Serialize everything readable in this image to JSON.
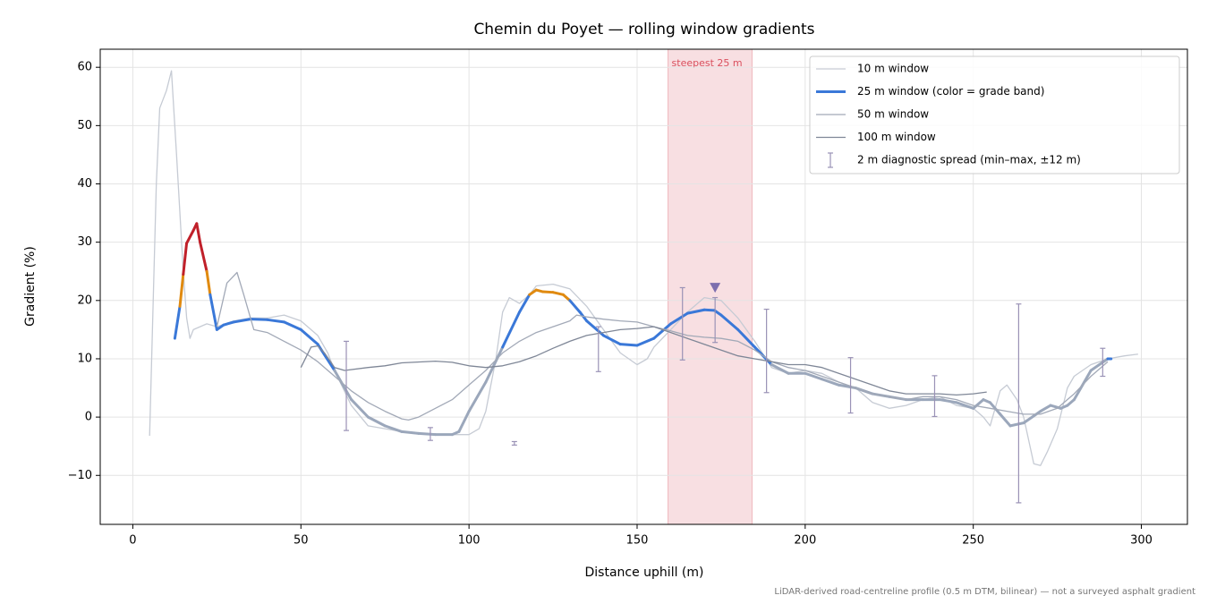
{
  "chart_data": {
    "type": "line",
    "title": "Chemin du Poyet — rolling window gradients",
    "xlabel": "Distance uphill (m)",
    "ylabel": "Gradient (%)",
    "xlim": [
      -9.7,
      313.7
    ],
    "ylim": [
      -18.4,
      63.1
    ],
    "xticks": [
      0,
      50,
      100,
      150,
      200,
      250,
      300
    ],
    "yticks": [
      {
        "value": -10,
        "label": "−10"
      },
      0,
      10,
      20,
      30,
      40,
      50,
      60
    ],
    "grid": true,
    "legend": "upper right",
    "series": [
      {
        "name": "10 m window",
        "color": "#c6cbd4",
        "linewidth": 1.3,
        "x": [
          5,
          7,
          8,
          10,
          11.5,
          13,
          15,
          16,
          17,
          18,
          20,
          22,
          25,
          30,
          35,
          40,
          45,
          50,
          55,
          58,
          60,
          65,
          70,
          75,
          80,
          85,
          90,
          95,
          100,
          103,
          105,
          108,
          110,
          112,
          115,
          118,
          120,
          125,
          130,
          135,
          140,
          145,
          150,
          153,
          155,
          160,
          165,
          170,
          175,
          180,
          185,
          190,
          195,
          200,
          205,
          210,
          215,
          220,
          225,
          230,
          235,
          240,
          245,
          250,
          253,
          255,
          258,
          260,
          263,
          265,
          268,
          270,
          272,
          275,
          278,
          280,
          285,
          290,
          295,
          299
        ],
        "values": [
          -3.2,
          40,
          53,
          56,
          59.4,
          45,
          25,
          17,
          13.5,
          15,
          15.5,
          16,
          15.5,
          16.5,
          17,
          17,
          17.5,
          16.5,
          14,
          11,
          8,
          2,
          -1.5,
          -2,
          -2.5,
          -2.8,
          -3,
          -3,
          -3,
          -2,
          1,
          10,
          18,
          20.5,
          19.5,
          21,
          22.5,
          22.8,
          22,
          19,
          15,
          11,
          9,
          10,
          12,
          15,
          18,
          20.5,
          20,
          17,
          13,
          8.5,
          7.5,
          8,
          7.5,
          6,
          5,
          2.5,
          1.5,
          2,
          3,
          3.5,
          2,
          1.5,
          0,
          -1.5,
          4.5,
          5.5,
          3,
          0,
          -8,
          -8.3,
          -6,
          -2,
          5,
          7,
          9,
          10,
          10.5,
          10.8
        ]
      },
      {
        "name": "25 m window (color = grade band)",
        "color": "#3a78d8",
        "linewidth": 3,
        "band_thresholds": [
          10,
          20,
          25
        ],
        "band_colors": [
          "#9ba7bb",
          "#3a78d8",
          "#e08a10",
          "#c0202a"
        ],
        "x": [
          12.5,
          14,
          15,
          16,
          18,
          19,
          20,
          22,
          23,
          25,
          27,
          30,
          35,
          40,
          45,
          50,
          55,
          60,
          65,
          70,
          75,
          80,
          85,
          90,
          95,
          97,
          100,
          105,
          110,
          115,
          118,
          120,
          122,
          125,
          128,
          130,
          133,
          135,
          140,
          145,
          150,
          155,
          160,
          165,
          170,
          173,
          175,
          180,
          185,
          190,
          195,
          200,
          205,
          210,
          215,
          220,
          225,
          230,
          235,
          240,
          245,
          250,
          253,
          255,
          258,
          261,
          265,
          270,
          273,
          276,
          278,
          280,
          285,
          290,
          291
        ],
        "values": [
          13.5,
          19,
          24.5,
          29.8,
          32,
          33.2,
          30,
          25,
          21,
          15,
          15.8,
          16.3,
          16.8,
          16.7,
          16.3,
          15,
          12.5,
          8,
          3,
          0,
          -1.5,
          -2.5,
          -2.8,
          -3,
          -3,
          -2.5,
          1,
          6,
          12,
          18,
          21,
          21.8,
          21.5,
          21.4,
          21,
          20,
          18,
          16.5,
          14,
          12.5,
          12.3,
          13.5,
          16,
          17.8,
          18.4,
          18.3,
          17.5,
          15,
          12,
          9,
          7.5,
          7.5,
          6.5,
          5.5,
          5,
          4,
          3.5,
          3,
          3,
          3,
          2.5,
          1.5,
          3,
          2.5,
          0.5,
          -1.5,
          -1,
          1,
          2,
          1.5,
          2,
          3,
          8,
          10,
          10
        ]
      },
      {
        "name": "50 m window",
        "color": "#a2a9b7",
        "linewidth": 1.3,
        "x": [
          25,
          28,
          31,
          33,
          36,
          40,
          45,
          50,
          55,
          60,
          65,
          70,
          75,
          80,
          82,
          85,
          90,
          95,
          100,
          105,
          110,
          115,
          120,
          125,
          130,
          132,
          135,
          140,
          145,
          150,
          155,
          160,
          165,
          170,
          175,
          180,
          185,
          190,
          195,
          200,
          205,
          210,
          215,
          220,
          225,
          230,
          235,
          240,
          245,
          250,
          255,
          260,
          265,
          270,
          275,
          280,
          285,
          290
        ],
        "values": [
          15.5,
          23,
          24.8,
          21,
          15,
          14.5,
          13,
          11.5,
          9.5,
          7,
          4.5,
          2.5,
          1,
          -0.3,
          -0.5,
          0,
          1.5,
          3,
          5.5,
          8,
          11,
          13,
          14.5,
          15.5,
          16.5,
          17.5,
          17.2,
          16.8,
          16.5,
          16.3,
          15.5,
          14.8,
          14,
          13.7,
          13.5,
          13,
          11.5,
          9.5,
          8.5,
          8,
          7,
          6,
          5,
          4,
          3.5,
          3,
          3.5,
          3.5,
          3,
          2,
          1.5,
          1,
          0.5,
          0.5,
          1.5,
          4,
          7,
          9.5
        ]
      },
      {
        "name": "100 m window",
        "color": "#7f8797",
        "linewidth": 1.3,
        "x": [
          50,
          53,
          55,
          57,
          60,
          63,
          70,
          75,
          80,
          90,
          95,
          100,
          105,
          110,
          115,
          120,
          125,
          130,
          135,
          140,
          145,
          150,
          155,
          160,
          165,
          170,
          175,
          180,
          185,
          190,
          195,
          200,
          205,
          210,
          215,
          220,
          225,
          230,
          240,
          245,
          250,
          254
        ],
        "values": [
          8.5,
          12,
          12.2,
          11,
          8.5,
          8,
          8.5,
          8.8,
          9.3,
          9.6,
          9.4,
          8.8,
          8.5,
          8.8,
          9.5,
          10.5,
          11.8,
          13,
          14,
          14.5,
          15,
          15.2,
          15.5,
          14.5,
          13.5,
          12.5,
          11.5,
          10.5,
          10,
          9.5,
          9,
          9,
          8.5,
          7.5,
          6.5,
          5.5,
          4.5,
          4,
          4,
          3.8,
          4,
          4.3
        ]
      }
    ],
    "errorbars": {
      "name": "2 m diagnostic spread (min–max, ±12 m)",
      "color": "#9a92b6",
      "x": [
        63.5,
        88.5,
        113.5,
        138.5,
        163.5,
        173.2,
        188.5,
        213.5,
        238.5,
        263.5,
        288.5
      ],
      "low": [
        -2.3,
        -4.0,
        -4.8,
        7.8,
        9.8,
        12.8,
        4.2,
        0.7,
        0.1,
        -14.7,
        7.0
      ],
      "high": [
        13.0,
        -1.8,
        -4.2,
        15.5,
        22.2,
        20.5,
        18.5,
        10.2,
        7.1,
        19.4,
        11.8
      ]
    },
    "highlight": {
      "label": "steepest 25 m",
      "x": [
        159.2,
        184.2
      ],
      "color": "#d9505e"
    },
    "peak_marker": {
      "x": 173.2,
      "y": 22.1,
      "color": "#7d6fae"
    },
    "footnote": "LiDAR-derived road-centreline profile (0.5 m DTM, bilinear) — not a surveyed asphalt gradient"
  }
}
